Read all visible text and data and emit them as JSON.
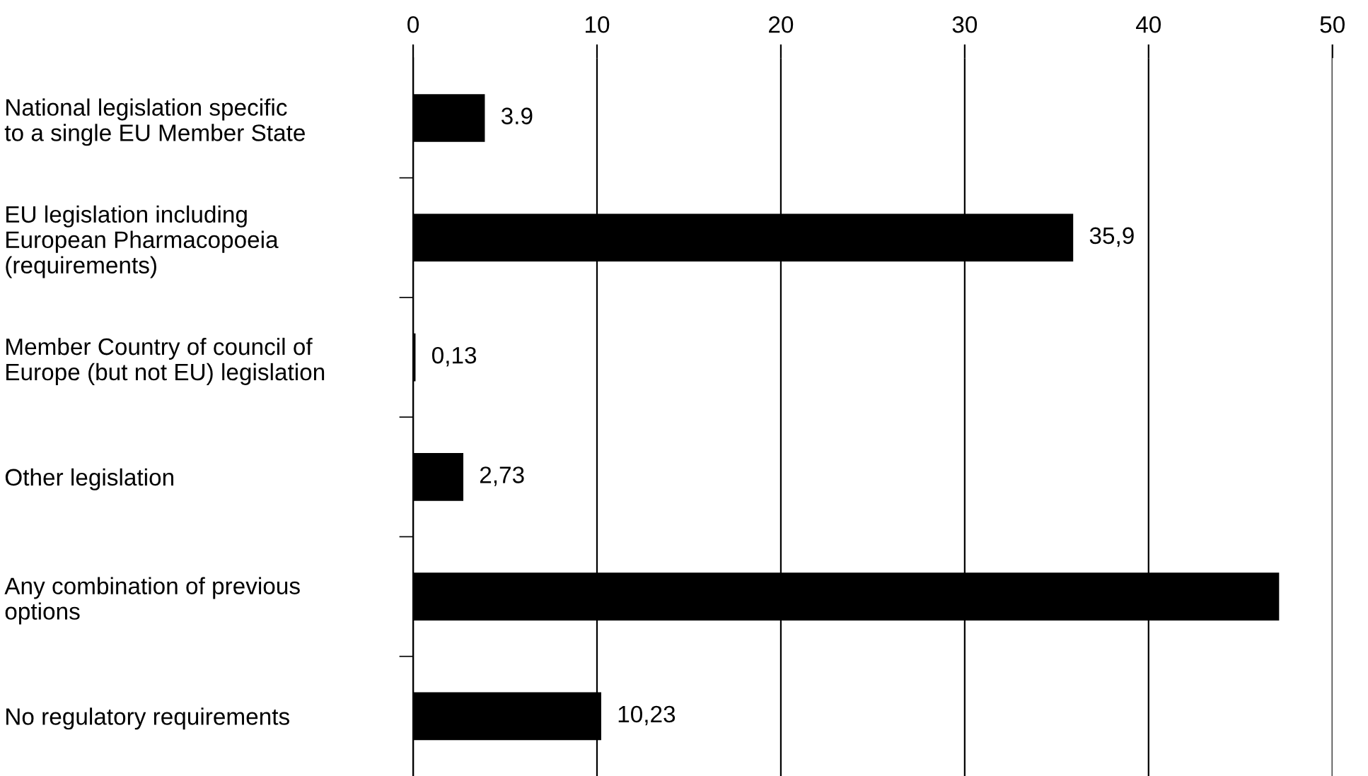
{
  "chart_data": {
    "type": "bar",
    "orientation": "horizontal",
    "categories": [
      "National legislation specific\nto a single EU Member State",
      "EU legislation including\nEuropean Pharmacopoeia\n(requirements)",
      "Member Country of council of\nEurope (but not EU) legislation",
      "Other legislation",
      "Any combination of previous\noptions",
      "No regulatory requirements"
    ],
    "values": [
      3.9,
      35.9,
      0.13,
      2.73,
      47.1,
      10.23
    ],
    "value_labels": [
      "3.9",
      "35,9",
      "0,13",
      "2,73",
      null,
      "10,23"
    ],
    "color": "#000000",
    "xlim": [
      0,
      50
    ],
    "xticks": [
      0,
      10,
      20,
      30,
      40,
      50
    ],
    "grid": "x",
    "legend": false
  }
}
